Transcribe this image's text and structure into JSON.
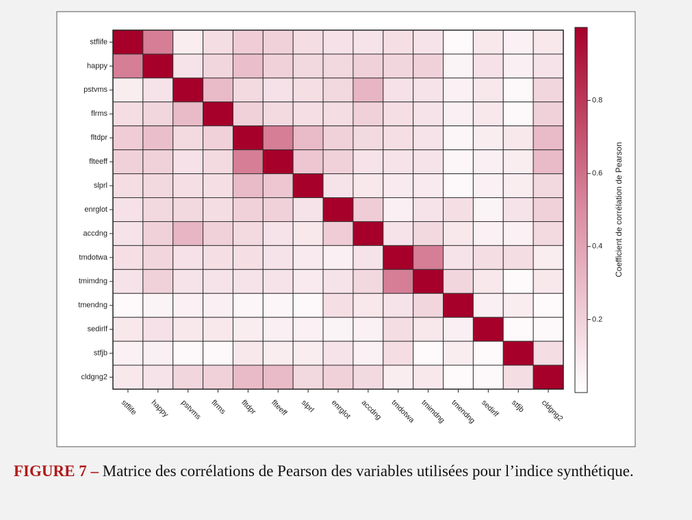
{
  "chart_data": {
    "type": "heatmap",
    "x": [
      "stflife",
      "happy",
      "pstvms",
      "flrms",
      "fltdpr",
      "flteeff",
      "slprl",
      "enrglot",
      "accdng",
      "tmdotwa",
      "tmimdng",
      "tmendng",
      "sedirlf",
      "stfjb",
      "cldgng2"
    ],
    "y": [
      "stflife",
      "happy",
      "pstvms",
      "flrms",
      "fltdpr",
      "flteeff",
      "slprl",
      "enrglot",
      "accdng",
      "tmdotwa",
      "tmimdng",
      "tmendng",
      "sedirlf",
      "stfjb",
      "cldgng2"
    ],
    "values": [
      [
        1,
        0.55,
        0.08,
        0.15,
        0.22,
        0.2,
        0.15,
        0.13,
        0.12,
        0.14,
        0.12,
        0.02,
        0.1,
        0.06,
        0.1
      ],
      [
        0.55,
        1,
        0.12,
        0.18,
        0.28,
        0.2,
        0.17,
        0.17,
        0.2,
        0.18,
        0.2,
        0.05,
        0.13,
        0.07,
        0.12
      ],
      [
        0.08,
        0.12,
        1,
        0.3,
        0.16,
        0.13,
        0.14,
        0.17,
        0.32,
        0.13,
        0.12,
        0.06,
        0.1,
        0.03,
        0.18
      ],
      [
        0.15,
        0.18,
        0.3,
        1,
        0.2,
        0.16,
        0.14,
        0.15,
        0.2,
        0.14,
        0.12,
        0.07,
        0.1,
        0.03,
        0.2
      ],
      [
        0.22,
        0.28,
        0.16,
        0.2,
        1,
        0.55,
        0.3,
        0.2,
        0.16,
        0.14,
        0.12,
        0.04,
        0.08,
        0.1,
        0.3
      ],
      [
        0.2,
        0.2,
        0.13,
        0.16,
        0.55,
        1,
        0.25,
        0.2,
        0.12,
        0.12,
        0.12,
        0.04,
        0.07,
        0.08,
        0.3
      ],
      [
        0.15,
        0.17,
        0.14,
        0.14,
        0.3,
        0.25,
        1,
        0.12,
        0.1,
        0.09,
        0.09,
        0.03,
        0.06,
        0.08,
        0.17
      ],
      [
        0.13,
        0.17,
        0.17,
        0.15,
        0.2,
        0.2,
        0.12,
        1,
        0.22,
        0.07,
        0.12,
        0.14,
        0.05,
        0.12,
        0.2
      ],
      [
        0.12,
        0.2,
        0.32,
        0.2,
        0.16,
        0.12,
        0.1,
        0.22,
        1,
        0.12,
        0.17,
        0.1,
        0.06,
        0.06,
        0.16
      ],
      [
        0.14,
        0.18,
        0.13,
        0.14,
        0.14,
        0.12,
        0.09,
        0.07,
        0.12,
        1,
        0.55,
        0.12,
        0.15,
        0.15,
        0.08
      ],
      [
        0.12,
        0.2,
        0.12,
        0.12,
        0.12,
        0.12,
        0.09,
        0.12,
        0.17,
        0.55,
        1,
        0.18,
        0.1,
        0.02,
        0.1
      ],
      [
        0.02,
        0.05,
        0.06,
        0.07,
        0.04,
        0.04,
        0.03,
        0.14,
        0.1,
        0.12,
        0.18,
        1,
        0.07,
        0.08,
        0.02
      ],
      [
        0.1,
        0.13,
        0.1,
        0.1,
        0.08,
        0.07,
        0.06,
        0.05,
        0.06,
        0.15,
        0.1,
        0.07,
        1,
        0.02,
        0.03
      ],
      [
        0.06,
        0.07,
        0.03,
        0.03,
        0.1,
        0.08,
        0.08,
        0.12,
        0.06,
        0.15,
        0.02,
        0.08,
        0.02,
        1,
        0.15
      ],
      [
        0.1,
        0.12,
        0.18,
        0.2,
        0.3,
        0.3,
        0.17,
        0.2,
        0.16,
        0.08,
        0.1,
        0.02,
        0.03,
        0.15,
        1
      ]
    ],
    "colors": [
      "#ffffff",
      "#da8ca2",
      "#a6002a"
    ],
    "zlim": [
      0,
      1
    ],
    "zticks": [
      0.2,
      0.4,
      0.6,
      0.8
    ],
    "colorbar_label": "Coefficient de corrélation de Pearson"
  },
  "caption": {
    "label": "FIGURE 7 –",
    "text": "Matrice des corrélations de Pearson des variables utilisées pour l’indice synthétique."
  }
}
